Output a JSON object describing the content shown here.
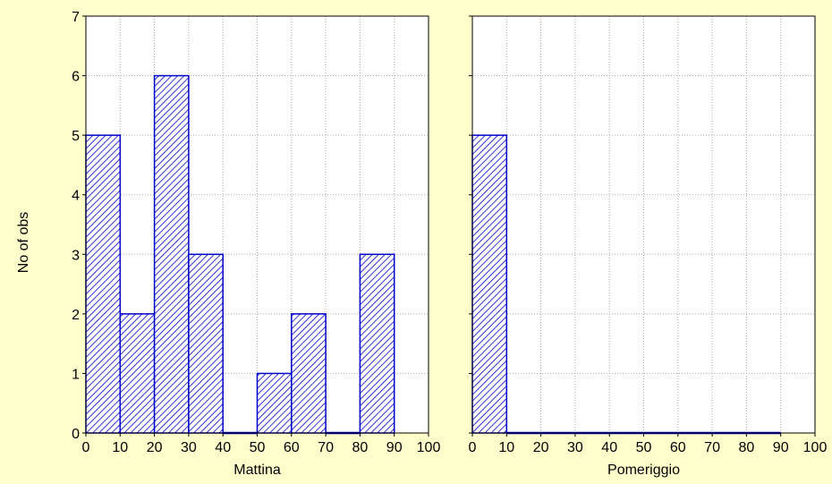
{
  "chart_data": {
    "type": "bar",
    "ylabel": "No of obs",
    "y_ticks": [
      "0",
      "1",
      "2",
      "3",
      "4",
      "5",
      "6",
      "7"
    ],
    "x_ticks": [
      "0",
      "10",
      "20",
      "30",
      "40",
      "50",
      "60",
      "70",
      "80",
      "90",
      "100"
    ],
    "ylim": [
      0,
      7
    ],
    "xlim": [
      0,
      100
    ],
    "grid": true,
    "bar_color": "#0000cc",
    "bar_fill_pattern": "diagonal-hatch",
    "panels": [
      {
        "xlabel": "Mattina",
        "bins": [
          [
            0,
            10
          ],
          [
            10,
            20
          ],
          [
            20,
            30
          ],
          [
            30,
            40
          ],
          [
            40,
            50
          ],
          [
            50,
            60
          ],
          [
            60,
            70
          ],
          [
            70,
            80
          ],
          [
            80,
            90
          ]
        ],
        "values": [
          5,
          2,
          6,
          3,
          0,
          1,
          2,
          0,
          3
        ]
      },
      {
        "xlabel": "Pomeriggio",
        "bins": [
          [
            0,
            10
          ],
          [
            10,
            20
          ],
          [
            20,
            30
          ],
          [
            30,
            40
          ],
          [
            40,
            50
          ],
          [
            50,
            60
          ],
          [
            60,
            70
          ],
          [
            70,
            80
          ],
          [
            80,
            90
          ]
        ],
        "values": [
          5,
          0,
          0,
          0,
          0,
          0,
          0,
          0,
          0
        ]
      }
    ]
  }
}
